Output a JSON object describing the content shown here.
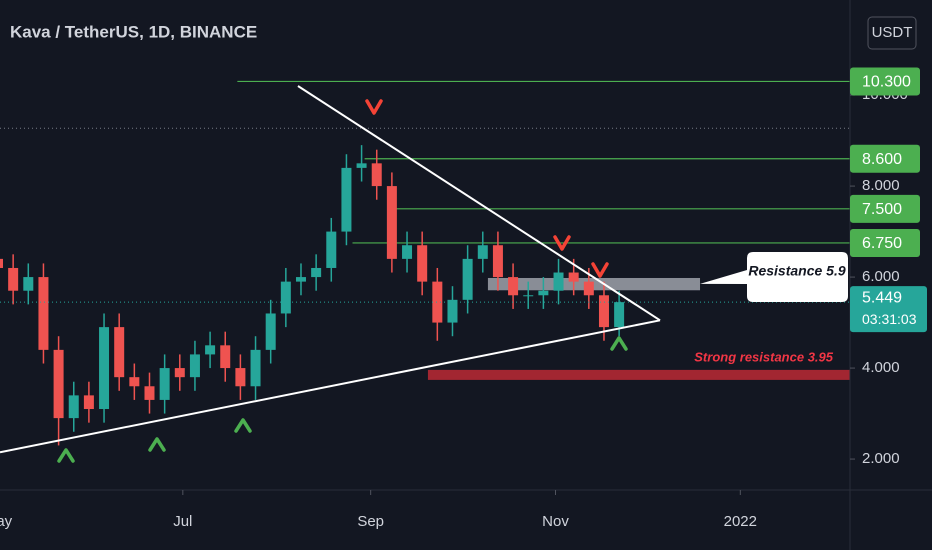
{
  "chart_data": {
    "type": "candlestick",
    "title": "Kava / TetherUS, 1D, BINANCE",
    "currency_button": "USDT",
    "x": [
      0,
      5,
      10,
      15,
      20,
      25,
      30,
      35,
      40,
      45,
      50,
      55,
      60,
      65,
      70,
      75,
      80,
      85,
      90,
      95,
      100,
      105,
      110,
      115,
      120,
      125,
      130,
      135,
      140,
      145,
      150,
      155,
      160,
      165,
      170,
      175,
      180,
      185,
      190,
      195,
      200,
      205
    ],
    "open": [
      6.4,
      6.2,
      5.7,
      6.0,
      4.4,
      2.9,
      3.4,
      3.1,
      4.9,
      3.8,
      3.6,
      3.3,
      4.0,
      3.8,
      4.3,
      4.5,
      4.0,
      3.6,
      4.4,
      5.2,
      5.9,
      6.0,
      6.2,
      7.0,
      8.4,
      8.5,
      8.0,
      6.4,
      6.7,
      5.9,
      5.0,
      5.5,
      6.4,
      6.7,
      6.0,
      5.6,
      5.6,
      5.7,
      6.1,
      5.9,
      5.6,
      4.9
    ],
    "high": [
      6.7,
      6.5,
      6.3,
      6.3,
      4.7,
      3.7,
      3.7,
      5.2,
      5.2,
      4.1,
      3.9,
      4.3,
      4.3,
      4.6,
      4.8,
      4.8,
      4.3,
      4.7,
      5.5,
      6.2,
      6.3,
      6.5,
      7.3,
      8.7,
      8.9,
      8.8,
      8.3,
      7.0,
      7.0,
      6.2,
      5.8,
      6.7,
      7.0,
      7.0,
      6.3,
      5.9,
      6.0,
      6.4,
      6.4,
      6.2,
      5.9,
      5.7
    ],
    "low": [
      5.9,
      5.4,
      5.4,
      4.1,
      2.3,
      2.6,
      2.8,
      2.8,
      3.5,
      3.3,
      3.0,
      3.0,
      3.5,
      3.5,
      4.0,
      3.7,
      3.3,
      3.3,
      4.1,
      4.9,
      5.6,
      5.7,
      5.9,
      6.7,
      8.1,
      7.7,
      6.1,
      6.1,
      5.6,
      4.6,
      4.7,
      5.2,
      6.1,
      5.7,
      5.3,
      5.3,
      5.3,
      5.4,
      5.6,
      5.3,
      4.6,
      4.7
    ],
    "close": [
      6.2,
      5.7,
      6.0,
      4.4,
      2.9,
      3.4,
      3.1,
      4.9,
      3.8,
      3.6,
      3.3,
      4.0,
      3.8,
      4.3,
      4.5,
      4.0,
      3.6,
      4.4,
      5.2,
      5.9,
      6.0,
      6.2,
      7.0,
      8.4,
      8.5,
      8.0,
      6.4,
      6.7,
      5.9,
      5.0,
      5.5,
      6.4,
      6.7,
      6.0,
      5.6,
      5.6,
      5.7,
      6.1,
      5.9,
      5.6,
      4.9,
      5.449
    ],
    "up_color": "#26a69a",
    "down_color": "#ef5350",
    "xlim": [
      0.66,
      281.2
    ],
    "ylim": [
      1.32,
      12.09
    ],
    "xticks": [
      {
        "value": 0,
        "label": "May"
      },
      {
        "value": 61,
        "label": "Jul"
      },
      {
        "value": 123,
        "label": "Sep"
      },
      {
        "value": 184,
        "label": "Nov"
      },
      {
        "value": 245,
        "label": "2022"
      }
    ],
    "yticks": [
      {
        "value": 2,
        "label": "2.000"
      },
      {
        "value": 4,
        "label": "4.000"
      },
      {
        "value": 6,
        "label": "6.000"
      },
      {
        "value": 8,
        "label": "8.000"
      },
      {
        "value": 10,
        "label": "10.000"
      }
    ],
    "levels": [
      {
        "value": 10.3,
        "label": "10.300",
        "from": 79
      },
      {
        "value": 8.6,
        "label": "8.600",
        "from": 121
      },
      {
        "value": 7.5,
        "label": "7.500",
        "from": 129
      },
      {
        "value": 6.75,
        "label": "6.750",
        "from": 117
      }
    ],
    "level_color": "#4caf50",
    "reference_line": 9.27,
    "current": {
      "value": 5.449,
      "label": "5.449",
      "countdown": "03:31:03",
      "color": "#26a69a"
    },
    "trendlines": [
      {
        "x": [
          99,
          218.5
        ],
        "y": [
          10.2,
          5.05
        ]
      },
      {
        "x": [
          0.66,
          218.5
        ],
        "y": [
          2.15,
          5.05
        ]
      }
    ],
    "zones": [
      {
        "x": [
          161.7,
          231.7
        ],
        "y": [
          5.71,
          5.98
        ],
        "color": "#b2b5be",
        "label": "Resistance 5.9"
      },
      {
        "x": [
          141.9,
          281.2
        ],
        "y": [
          3.74,
          3.96
        ],
        "color": "#b22833",
        "label": "Strong resistance 3.95"
      }
    ]
  }
}
